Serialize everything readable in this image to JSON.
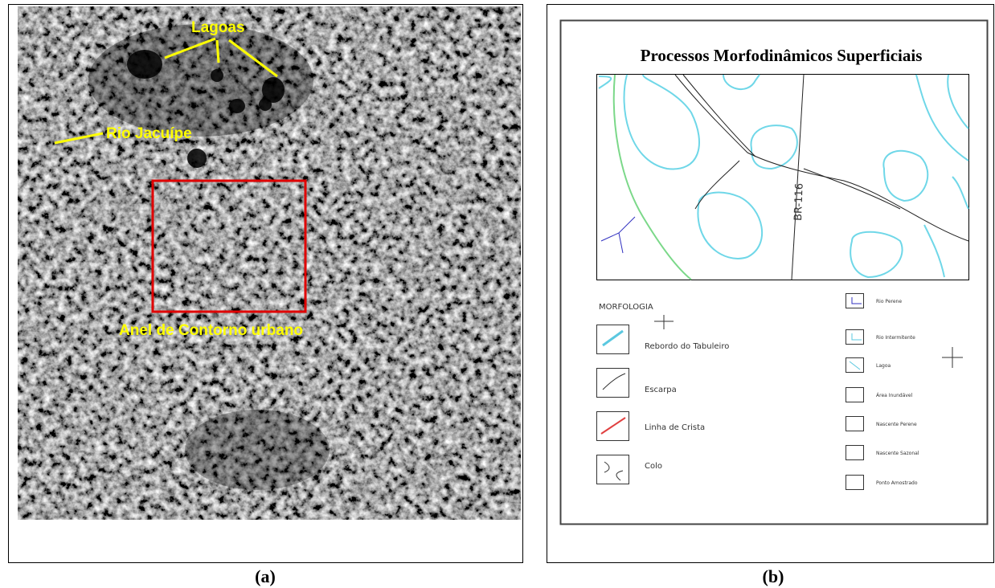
{
  "panel_a": {
    "lagoas": "Lagoas",
    "rio": "Rio Jacuípe",
    "anel": "Anel de Contorno urbano",
    "caption": "(a)"
  },
  "panel_b": {
    "title": "Processos Morfodinâmicos Superficiais",
    "road": "BR-116",
    "legend_title": "MORFOLOGIA",
    "morfologia": [
      "Rebordo do Tabuleiro",
      "Escarpa",
      "Linha de Crista",
      "Colo"
    ],
    "hidrografia": [
      "Rio Perene",
      "Rio Intermitente",
      "Lagoa",
      "Área Inundável",
      "Nascente Perene",
      "Nascente Sazonal",
      "Ponto Amostrado"
    ],
    "caption": "(b)"
  }
}
